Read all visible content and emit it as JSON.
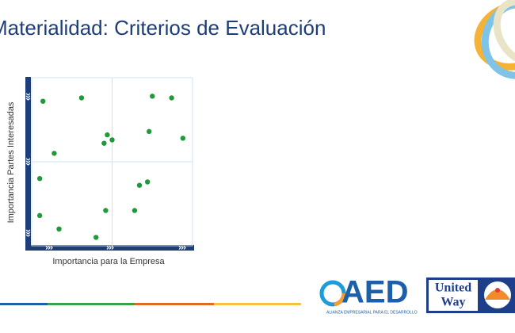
{
  "chart_data": {
    "type": "scatter",
    "title": "Materialidad: Criterios de Evaluación",
    "x_label": "Importancia para la Empresa",
    "y_label": "Importancia Partes Interesadas",
    "xlim": [
      0,
      10
    ],
    "ylim": [
      0,
      10
    ],
    "grid": true,
    "color": "#1e9a3c",
    "series": [
      {
        "x": [
          0.7,
          3.1,
          7.5,
          8.7,
          4.7,
          4.5,
          5.0,
          7.3,
          9.4,
          1.4,
          0.5,
          6.7,
          7.2,
          4.6,
          6.4,
          0.5,
          1.7,
          4.0
        ],
        "values": [
          8.6,
          8.8,
          8.9,
          8.8,
          6.6,
          6.1,
          6.3,
          6.8,
          6.4,
          5.5,
          4.0,
          3.6,
          3.8,
          2.1,
          2.1,
          1.8,
          1.0,
          0.5
        ]
      }
    ],
    "annotations": [
      "AED",
      "ALIANZA EMPRESARIAL PARA EL DESARROLLO",
      "United",
      "Way"
    ]
  }
}
